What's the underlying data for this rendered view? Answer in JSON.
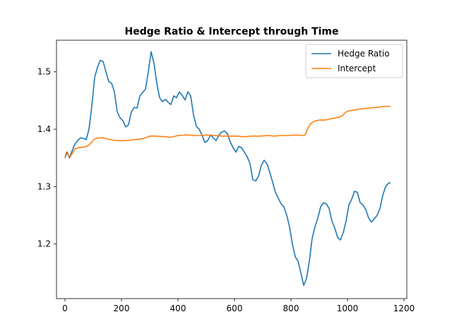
{
  "chart_data": {
    "type": "line",
    "title": "Hedge Ratio & Intercept through Time",
    "xlabel": "",
    "ylabel": "",
    "xlim": [
      -30,
      1210
    ],
    "ylim": [
      1.105,
      1.555
    ],
    "xticks": [
      0,
      200,
      400,
      600,
      800,
      1000,
      1200
    ],
    "yticks": [
      1.2,
      1.3,
      1.4,
      1.5
    ],
    "xtick_labels": [
      "0",
      "200",
      "400",
      "600",
      "800",
      "1000",
      "1200"
    ],
    "ytick_labels": [
      "1.2",
      "1.3",
      "1.4",
      "1.5"
    ],
    "grid": false,
    "legend_position": "top-right",
    "series": [
      {
        "name": "Hedge Ratio",
        "color": "#1f77b4",
        "points": [
          [
            0,
            1.35
          ],
          [
            8,
            1.36
          ],
          [
            16,
            1.35
          ],
          [
            25,
            1.362
          ],
          [
            35,
            1.374
          ],
          [
            45,
            1.38
          ],
          [
            55,
            1.385
          ],
          [
            65,
            1.384
          ],
          [
            75,
            1.382
          ],
          [
            85,
            1.4
          ],
          [
            95,
            1.44
          ],
          [
            105,
            1.49
          ],
          [
            115,
            1.508
          ],
          [
            125,
            1.52
          ],
          [
            135,
            1.518
          ],
          [
            145,
            1.5
          ],
          [
            155,
            1.483
          ],
          [
            165,
            1.48
          ],
          [
            175,
            1.465
          ],
          [
            185,
            1.43
          ],
          [
            195,
            1.42
          ],
          [
            205,
            1.415
          ],
          [
            215,
            1.404
          ],
          [
            225,
            1.408
          ],
          [
            235,
            1.43
          ],
          [
            245,
            1.438
          ],
          [
            255,
            1.437
          ],
          [
            265,
            1.458
          ],
          [
            275,
            1.464
          ],
          [
            285,
            1.47
          ],
          [
            295,
            1.5
          ],
          [
            305,
            1.535
          ],
          [
            315,
            1.515
          ],
          [
            325,
            1.48
          ],
          [
            335,
            1.455
          ],
          [
            345,
            1.448
          ],
          [
            355,
            1.452
          ],
          [
            365,
            1.447
          ],
          [
            375,
            1.443
          ],
          [
            385,
            1.458
          ],
          [
            395,
            1.455
          ],
          [
            405,
            1.465
          ],
          [
            415,
            1.459
          ],
          [
            425,
            1.451
          ],
          [
            435,
            1.465
          ],
          [
            445,
            1.458
          ],
          [
            455,
            1.425
          ],
          [
            465,
            1.405
          ],
          [
            475,
            1.4
          ],
          [
            485,
            1.39
          ],
          [
            495,
            1.377
          ],
          [
            505,
            1.38
          ],
          [
            515,
            1.39
          ],
          [
            525,
            1.385
          ],
          [
            535,
            1.38
          ],
          [
            545,
            1.39
          ],
          [
            555,
            1.395
          ],
          [
            565,
            1.397
          ],
          [
            575,
            1.392
          ],
          [
            585,
            1.378
          ],
          [
            595,
            1.368
          ],
          [
            605,
            1.36
          ],
          [
            615,
            1.37
          ],
          [
            625,
            1.368
          ],
          [
            635,
            1.36
          ],
          [
            645,
            1.352
          ],
          [
            655,
            1.34
          ],
          [
            665,
            1.312
          ],
          [
            675,
            1.31
          ],
          [
            685,
            1.318
          ],
          [
            695,
            1.337
          ],
          [
            705,
            1.346
          ],
          [
            715,
            1.34
          ],
          [
            725,
            1.325
          ],
          [
            735,
            1.308
          ],
          [
            745,
            1.29
          ],
          [
            755,
            1.28
          ],
          [
            765,
            1.27
          ],
          [
            775,
            1.265
          ],
          [
            785,
            1.25
          ],
          [
            795,
            1.23
          ],
          [
            805,
            1.2
          ],
          [
            815,
            1.178
          ],
          [
            825,
            1.17
          ],
          [
            835,
            1.15
          ],
          [
            845,
            1.128
          ],
          [
            855,
            1.14
          ],
          [
            865,
            1.17
          ],
          [
            875,
            1.21
          ],
          [
            885,
            1.23
          ],
          [
            895,
            1.245
          ],
          [
            905,
            1.265
          ],
          [
            915,
            1.272
          ],
          [
            925,
            1.27
          ],
          [
            935,
            1.262
          ],
          [
            945,
            1.24
          ],
          [
            955,
            1.228
          ],
          [
            965,
            1.212
          ],
          [
            975,
            1.207
          ],
          [
            985,
            1.22
          ],
          [
            995,
            1.24
          ],
          [
            1005,
            1.268
          ],
          [
            1015,
            1.278
          ],
          [
            1025,
            1.292
          ],
          [
            1035,
            1.29
          ],
          [
            1045,
            1.272
          ],
          [
            1055,
            1.268
          ],
          [
            1065,
            1.26
          ],
          [
            1075,
            1.245
          ],
          [
            1085,
            1.238
          ],
          [
            1095,
            1.244
          ],
          [
            1105,
            1.25
          ],
          [
            1115,
            1.262
          ],
          [
            1125,
            1.285
          ],
          [
            1135,
            1.3
          ],
          [
            1145,
            1.306
          ],
          [
            1152,
            1.307
          ]
        ]
      },
      {
        "name": "Intercept",
        "color": "#ff7f0e",
        "points": [
          [
            0,
            1.35
          ],
          [
            5,
            1.36
          ],
          [
            10,
            1.356
          ],
          [
            18,
            1.352
          ],
          [
            25,
            1.357
          ],
          [
            35,
            1.366
          ],
          [
            50,
            1.368
          ],
          [
            70,
            1.369
          ],
          [
            85,
            1.372
          ],
          [
            95,
            1.378
          ],
          [
            105,
            1.383
          ],
          [
            120,
            1.385
          ],
          [
            135,
            1.385
          ],
          [
            150,
            1.383
          ],
          [
            170,
            1.381
          ],
          [
            190,
            1.38
          ],
          [
            210,
            1.38
          ],
          [
            230,
            1.381
          ],
          [
            250,
            1.382
          ],
          [
            270,
            1.383
          ],
          [
            285,
            1.385
          ],
          [
            300,
            1.388
          ],
          [
            320,
            1.388
          ],
          [
            350,
            1.387
          ],
          [
            375,
            1.386
          ],
          [
            400,
            1.389
          ],
          [
            430,
            1.39
          ],
          [
            460,
            1.389
          ],
          [
            480,
            1.389
          ],
          [
            500,
            1.39
          ],
          [
            530,
            1.389
          ],
          [
            560,
            1.388
          ],
          [
            590,
            1.388
          ],
          [
            610,
            1.388
          ],
          [
            625,
            1.387
          ],
          [
            640,
            1.387
          ],
          [
            660,
            1.388
          ],
          [
            690,
            1.388
          ],
          [
            720,
            1.389
          ],
          [
            740,
            1.388
          ],
          [
            760,
            1.389
          ],
          [
            790,
            1.389
          ],
          [
            820,
            1.39
          ],
          [
            840,
            1.389
          ],
          [
            850,
            1.39
          ],
          [
            860,
            1.402
          ],
          [
            870,
            1.41
          ],
          [
            880,
            1.413
          ],
          [
            890,
            1.415
          ],
          [
            900,
            1.416
          ],
          [
            920,
            1.416
          ],
          [
            940,
            1.418
          ],
          [
            960,
            1.42
          ],
          [
            975,
            1.422
          ],
          [
            985,
            1.425
          ],
          [
            995,
            1.43
          ],
          [
            1005,
            1.432
          ],
          [
            1020,
            1.433
          ],
          [
            1040,
            1.435
          ],
          [
            1060,
            1.436
          ],
          [
            1080,
            1.437
          ],
          [
            1100,
            1.438
          ],
          [
            1120,
            1.439
          ],
          [
            1140,
            1.44
          ],
          [
            1152,
            1.44
          ]
        ]
      }
    ]
  }
}
